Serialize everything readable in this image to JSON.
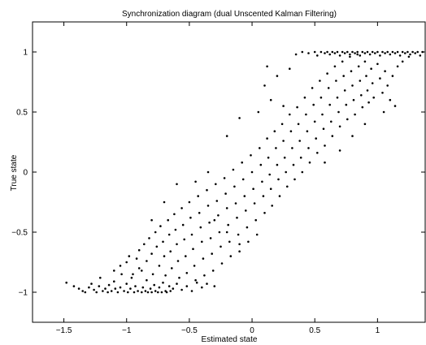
{
  "chart_data": {
    "type": "scatter",
    "title": "Synchronization diagram (dual Unscented Kalman Filtering)",
    "xlabel": "Estimated state",
    "ylabel": "True state",
    "xlim": [
      -1.75,
      1.38
    ],
    "ylim": [
      -1.25,
      1.25
    ],
    "xticks": [
      -1.5,
      -1,
      -0.5,
      0,
      0.5,
      1
    ],
    "xtick_labels": [
      "−1.5",
      "−1",
      "−0.5",
      "0",
      "0.5",
      "1"
    ],
    "yticks": [
      -1,
      -0.5,
      0,
      0.5,
      1
    ],
    "ytick_labels": [
      "−1",
      "−0.5",
      "0",
      "0.5",
      "1"
    ],
    "grid": false,
    "marker_color": "#000000",
    "series": [
      {
        "points": [
          [
            -1.48,
            -0.92
          ],
          [
            -1.42,
            -0.95
          ],
          [
            -1.38,
            -0.97
          ],
          [
            -1.35,
            -0.99
          ],
          [
            -1.33,
            -1.0
          ],
          [
            -1.3,
            -0.96
          ],
          [
            -1.28,
            -0.93
          ],
          [
            -1.26,
            -0.98
          ],
          [
            -1.24,
            -1.0
          ],
          [
            -1.22,
            -0.95
          ],
          [
            -1.21,
            -0.88
          ],
          [
            -1.19,
            -0.99
          ],
          [
            -1.17,
            -0.97
          ],
          [
            -1.15,
            -1.0
          ],
          [
            -1.14,
            -0.94
          ],
          [
            -1.12,
            -0.99
          ],
          [
            -1.1,
            -0.91
          ],
          [
            -1.09,
            -0.97
          ],
          [
            -1.07,
            -1.0
          ],
          [
            -1.05,
            -0.96
          ],
          [
            -1.04,
            -0.85
          ],
          [
            -1.02,
            -0.99
          ],
          [
            -1.0,
            -0.93
          ],
          [
            -0.99,
            -1.0
          ],
          [
            -0.97,
            -0.97
          ],
          [
            -0.96,
            -0.88
          ],
          [
            -0.94,
            -1.0
          ],
          [
            -0.93,
            -0.95
          ],
          [
            -0.91,
            -0.99
          ],
          [
            -0.9,
            -0.8
          ],
          [
            -0.88,
            -1.0
          ],
          [
            -0.87,
            -0.96
          ],
          [
            -0.85,
            -0.99
          ],
          [
            -0.84,
            -0.9
          ],
          [
            -0.83,
            -1.0
          ],
          [
            -0.81,
            -0.97
          ],
          [
            -0.8,
            -1.0
          ],
          [
            -0.78,
            -0.94
          ],
          [
            -0.77,
            -0.99
          ],
          [
            -0.75,
            -1.0
          ],
          [
            -0.74,
            -0.96
          ],
          [
            -0.72,
            -1.0
          ],
          [
            -0.71,
            -0.92
          ],
          [
            -0.69,
            -0.99
          ],
          [
            -0.68,
            -1.0
          ],
          [
            -0.66,
            -0.95
          ],
          [
            -0.65,
            -0.99
          ],
          [
            -0.63,
            -0.97
          ],
          [
            -0.6,
            -0.93
          ],
          [
            -0.56,
            -0.98
          ],
          [
            -0.52,
            -0.95
          ],
          [
            -0.48,
            -0.99
          ],
          [
            -0.44,
            -0.92
          ],
          [
            -0.4,
            -0.96
          ],
          [
            -0.36,
            -0.93
          ],
          [
            -0.3,
            -0.95
          ],
          [
            -1.1,
            -0.82
          ],
          [
            -1.05,
            -0.78
          ],
          [
            -1.0,
            -0.75
          ],
          [
            -0.98,
            -0.7
          ],
          [
            -0.95,
            -0.85
          ],
          [
            -0.92,
            -0.72
          ],
          [
            -0.9,
            -0.65
          ],
          [
            -0.88,
            -0.82
          ],
          [
            -0.86,
            -0.6
          ],
          [
            -0.84,
            -0.74
          ],
          [
            -0.82,
            -0.55
          ],
          [
            -0.8,
            -0.68
          ],
          [
            -0.79,
            -0.85
          ],
          [
            -0.77,
            -0.5
          ],
          [
            -0.76,
            -0.62
          ],
          [
            -0.74,
            -0.78
          ],
          [
            -0.73,
            -0.45
          ],
          [
            -0.71,
            -0.58
          ],
          [
            -0.7,
            -0.7
          ],
          [
            -0.69,
            -0.86
          ],
          [
            -0.67,
            -0.4
          ],
          [
            -0.66,
            -0.52
          ],
          [
            -0.65,
            -0.66
          ],
          [
            -0.64,
            -0.8
          ],
          [
            -0.62,
            -0.35
          ],
          [
            -0.61,
            -0.48
          ],
          [
            -0.6,
            -0.6
          ],
          [
            -0.59,
            -0.74
          ],
          [
            -0.58,
            -0.88
          ],
          [
            -0.56,
            -0.3
          ],
          [
            -0.55,
            -0.44
          ],
          [
            -0.54,
            -0.56
          ],
          [
            -0.53,
            -0.7
          ],
          [
            -0.52,
            -0.84
          ],
          [
            -0.5,
            -0.25
          ],
          [
            -0.49,
            -0.38
          ],
          [
            -0.48,
            -0.52
          ],
          [
            -0.47,
            -0.64
          ],
          [
            -0.46,
            -0.78
          ],
          [
            -0.45,
            -0.9
          ],
          [
            -0.43,
            -0.2
          ],
          [
            -0.42,
            -0.34
          ],
          [
            -0.41,
            -0.46
          ],
          [
            -0.4,
            -0.58
          ],
          [
            -0.39,
            -0.72
          ],
          [
            -0.38,
            -0.86
          ],
          [
            -0.36,
            -0.15
          ],
          [
            -0.35,
            -0.28
          ],
          [
            -0.34,
            -0.42
          ],
          [
            -0.33,
            -0.55
          ],
          [
            -0.32,
            -0.68
          ],
          [
            -0.31,
            -0.82
          ],
          [
            -0.29,
            -0.1
          ],
          [
            -0.28,
            -0.24
          ],
          [
            -0.27,
            -0.36
          ],
          [
            -0.26,
            -0.5
          ],
          [
            -0.25,
            -0.62
          ],
          [
            -0.24,
            -0.76
          ],
          [
            -0.22,
            -0.05
          ],
          [
            -0.21,
            -0.18
          ],
          [
            -0.2,
            -0.3
          ],
          [
            -0.19,
            -0.44
          ],
          [
            -0.18,
            -0.58
          ],
          [
            -0.17,
            -0.7
          ],
          [
            -0.15,
            0.02
          ],
          [
            -0.14,
            -0.12
          ],
          [
            -0.13,
            -0.26
          ],
          [
            -0.12,
            -0.38
          ],
          [
            -0.11,
            -0.52
          ],
          [
            -0.1,
            -0.66
          ],
          [
            -0.08,
            0.08
          ],
          [
            -0.07,
            -0.06
          ],
          [
            -0.06,
            -0.2
          ],
          [
            -0.05,
            -0.32
          ],
          [
            -0.04,
            -0.46
          ],
          [
            -0.03,
            -0.58
          ],
          [
            -0.01,
            0.14
          ],
          [
            0.0,
            0.0
          ],
          [
            0.01,
            -0.14
          ],
          [
            0.02,
            -0.26
          ],
          [
            0.03,
            -0.4
          ],
          [
            0.04,
            -0.52
          ],
          [
            0.06,
            0.2
          ],
          [
            0.07,
            0.06
          ],
          [
            0.08,
            -0.08
          ],
          [
            0.09,
            -0.2
          ],
          [
            0.1,
            -0.34
          ],
          [
            0.12,
            0.28
          ],
          [
            0.13,
            0.12
          ],
          [
            0.14,
            -0.02
          ],
          [
            0.15,
            -0.14
          ],
          [
            0.16,
            -0.28
          ],
          [
            0.18,
            0.34
          ],
          [
            0.19,
            0.2
          ],
          [
            0.2,
            0.06
          ],
          [
            0.21,
            -0.06
          ],
          [
            0.22,
            -0.2
          ],
          [
            0.24,
            0.4
          ],
          [
            0.25,
            0.26
          ],
          [
            0.26,
            0.12
          ],
          [
            0.27,
            0.0
          ],
          [
            0.28,
            -0.12
          ],
          [
            0.3,
            0.48
          ],
          [
            0.31,
            0.34
          ],
          [
            0.32,
            0.2
          ],
          [
            0.33,
            0.06
          ],
          [
            0.34,
            -0.06
          ],
          [
            0.36,
            0.54
          ],
          [
            0.37,
            0.4
          ],
          [
            0.38,
            0.26
          ],
          [
            0.39,
            0.12
          ],
          [
            0.4,
            0.0
          ],
          [
            0.42,
            0.62
          ],
          [
            0.43,
            0.48
          ],
          [
            0.44,
            0.34
          ],
          [
            0.45,
            0.2
          ],
          [
            0.46,
            0.08
          ],
          [
            0.48,
            0.7
          ],
          [
            0.49,
            0.56
          ],
          [
            0.5,
            0.42
          ],
          [
            0.51,
            0.28
          ],
          [
            0.52,
            0.16
          ],
          [
            0.54,
            0.76
          ],
          [
            0.55,
            0.62
          ],
          [
            0.56,
            0.48
          ],
          [
            0.57,
            0.36
          ],
          [
            0.58,
            0.22
          ],
          [
            0.6,
            0.82
          ],
          [
            0.61,
            0.7
          ],
          [
            0.62,
            0.56
          ],
          [
            0.63,
            0.42
          ],
          [
            0.64,
            0.3
          ],
          [
            0.66,
            0.88
          ],
          [
            0.67,
            0.76
          ],
          [
            0.68,
            0.62
          ],
          [
            0.69,
            0.5
          ],
          [
            0.7,
            0.38
          ],
          [
            0.72,
            0.92
          ],
          [
            0.73,
            0.8
          ],
          [
            0.74,
            0.68
          ],
          [
            0.75,
            0.56
          ],
          [
            0.76,
            0.44
          ],
          [
            0.78,
            0.96
          ],
          [
            0.79,
            0.84
          ],
          [
            0.8,
            0.72
          ],
          [
            0.81,
            0.6
          ],
          [
            0.82,
            0.48
          ],
          [
            0.84,
            0.98
          ],
          [
            0.85,
            0.88
          ],
          [
            0.86,
            0.76
          ],
          [
            0.87,
            0.64
          ],
          [
            0.88,
            0.54
          ],
          [
            0.9,
            0.92
          ],
          [
            0.91,
            0.8
          ],
          [
            0.92,
            0.68
          ],
          [
            0.93,
            0.58
          ],
          [
            0.95,
            0.86
          ],
          [
            0.96,
            0.74
          ],
          [
            0.97,
            0.62
          ],
          [
            1.0,
            0.9
          ],
          [
            1.02,
            0.78
          ],
          [
            1.04,
            0.66
          ],
          [
            1.06,
            0.84
          ],
          [
            1.08,
            0.72
          ],
          [
            1.12,
            0.8
          ],
          [
            1.16,
            0.88
          ],
          [
            1.2,
            0.92
          ],
          [
            1.25,
            0.96
          ],
          [
            0.35,
            0.98
          ],
          [
            0.4,
            1.0
          ],
          [
            0.45,
            0.99
          ],
          [
            0.5,
            1.0
          ],
          [
            0.52,
            0.97
          ],
          [
            0.55,
            1.0
          ],
          [
            0.58,
            0.99
          ],
          [
            0.6,
            1.0
          ],
          [
            0.62,
            0.98
          ],
          [
            0.64,
            1.0
          ],
          [
            0.66,
            0.99
          ],
          [
            0.68,
            1.0
          ],
          [
            0.7,
            0.97
          ],
          [
            0.72,
            1.0
          ],
          [
            0.74,
            0.99
          ],
          [
            0.76,
            1.0
          ],
          [
            0.78,
            0.98
          ],
          [
            0.8,
            1.0
          ],
          [
            0.82,
            0.99
          ],
          [
            0.84,
            1.0
          ],
          [
            0.86,
            0.97
          ],
          [
            0.88,
            1.0
          ],
          [
            0.9,
            0.99
          ],
          [
            0.92,
            1.0
          ],
          [
            0.94,
            0.98
          ],
          [
            0.96,
            1.0
          ],
          [
            0.98,
            0.99
          ],
          [
            1.0,
            1.0
          ],
          [
            1.02,
            0.97
          ],
          [
            1.04,
            1.0
          ],
          [
            1.06,
            0.99
          ],
          [
            1.08,
            1.0
          ],
          [
            1.1,
            0.98
          ],
          [
            1.12,
            1.0
          ],
          [
            1.14,
            0.99
          ],
          [
            1.16,
            1.0
          ],
          [
            1.18,
            0.97
          ],
          [
            1.2,
            1.0
          ],
          [
            1.22,
            0.99
          ],
          [
            1.24,
            1.0
          ],
          [
            1.26,
            0.98
          ],
          [
            1.28,
            1.0
          ],
          [
            1.3,
            0.99
          ],
          [
            1.32,
            1.0
          ],
          [
            1.34,
            0.97
          ],
          [
            1.36,
            1.0
          ],
          [
            0.1,
            0.72
          ],
          [
            0.2,
            0.8
          ],
          [
            0.25,
            0.55
          ],
          [
            0.3,
            0.86
          ],
          [
            0.15,
            0.6
          ],
          [
            -0.2,
            0.3
          ],
          [
            -0.1,
            0.45
          ],
          [
            0.05,
            0.5
          ],
          [
            0.58,
            0.08
          ],
          [
            0.7,
            0.18
          ],
          [
            0.8,
            0.3
          ],
          [
            0.9,
            0.4
          ],
          [
            1.05,
            0.5
          ],
          [
            -0.3,
            -0.4
          ],
          [
            -0.2,
            -0.5
          ],
          [
            -0.1,
            -0.6
          ],
          [
            -0.6,
            -0.1
          ],
          [
            -0.7,
            -0.25
          ],
          [
            -0.8,
            -0.4
          ],
          [
            -0.35,
            0.0
          ],
          [
            -0.45,
            -0.08
          ],
          [
            0.12,
            0.88
          ],
          [
            1.1,
            0.6
          ],
          [
            1.14,
            0.55
          ]
        ]
      }
    ]
  }
}
